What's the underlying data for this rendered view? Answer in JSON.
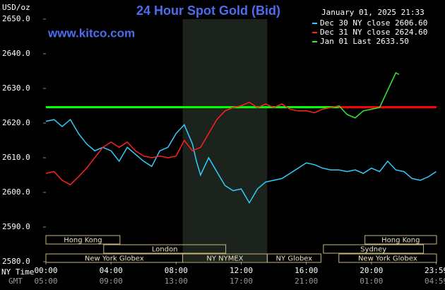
{
  "chart_data": {
    "type": "line",
    "title": "24 Hour Spot Gold (Bid)",
    "site": "www.kitco.com",
    "timestamp": "January 01, 2025 21:33",
    "y_label": "USD/oz",
    "x_row_label": "NY Time",
    "x2_row_label": "GMT",
    "xlim": [
      0,
      24
    ],
    "ylim": [
      2580,
      2650
    ],
    "grid": false,
    "yticks": [
      {
        "value": 2650,
        "label": "2650.0"
      },
      {
        "value": 2640,
        "label": "2640.0"
      },
      {
        "value": 2630,
        "label": "2630.0"
      },
      {
        "value": 2620,
        "label": "2620.0"
      },
      {
        "value": 2610,
        "label": "2610.0"
      },
      {
        "value": 2600,
        "label": "2600.0"
      },
      {
        "value": 2590,
        "label": "2590.0"
      },
      {
        "value": 2580,
        "label": "2580.0"
      }
    ],
    "xticks": [
      {
        "value": 0,
        "label": "00:00"
      },
      {
        "value": 4,
        "label": "04:00"
      },
      {
        "value": 8,
        "label": "08:00"
      },
      {
        "value": 12,
        "label": "12:00"
      },
      {
        "value": 16,
        "label": "16:00"
      },
      {
        "value": 20,
        "label": "20:00"
      },
      {
        "value": 23.98,
        "label": "23:59"
      }
    ],
    "x2ticks": [
      {
        "value": 0,
        "label": "05:00"
      },
      {
        "value": 4,
        "label": "09:00"
      },
      {
        "value": 8,
        "label": "13:00"
      },
      {
        "value": 12,
        "label": "17:00"
      },
      {
        "value": 16,
        "label": "21:00"
      },
      {
        "value": 20,
        "label": "01:00"
      },
      {
        "value": 23.98,
        "label": "04:59"
      }
    ],
    "shaded_span": [
      8.4,
      13.6
    ],
    "reference_line": {
      "value": 2624.6,
      "split_x": 18,
      "color_before": "#00ff00",
      "color_after": "#ff0000"
    },
    "sessions": [
      {
        "label": "Hong Kong",
        "row": 0,
        "start": 0,
        "end": 4.55
      },
      {
        "label": "Hong Kong",
        "row": 0,
        "start": 19.6,
        "end": 24
      },
      {
        "label": "London",
        "row": 1,
        "start": 3.55,
        "end": 11.05
      },
      {
        "label": "Sydney",
        "row": 1,
        "start": 17.05,
        "end": 23.2
      },
      {
        "label": "New York Globex",
        "row": 2,
        "start": 0,
        "end": 8.4
      },
      {
        "label": "NY NYMEX",
        "row": 2,
        "start": 8.4,
        "end": 13.6
      },
      {
        "label": "NY Globex",
        "row": 2,
        "start": 13.6,
        "end": 16.9
      },
      {
        "label": "New York Globex",
        "row": 2,
        "start": 18,
        "end": 24
      }
    ],
    "legend_position": "upper right",
    "series": [
      {
        "name": "Dec 30 NY close 2606.60",
        "color": "#33ccff",
        "x": [
          0,
          0.5,
          1,
          1.5,
          2,
          2.5,
          3,
          3.5,
          4,
          4.5,
          5,
          5.5,
          6,
          6.5,
          7,
          7.5,
          8,
          8.5,
          9,
          9.25,
          9.5,
          10,
          10.5,
          11,
          11.5,
          12,
          12.5,
          13,
          13.5,
          14,
          14.5,
          15,
          15.5,
          16,
          16.5,
          17,
          17.5,
          18,
          18.5,
          19,
          19.5,
          20,
          20.5,
          21,
          21.5,
          22,
          22.5,
          23,
          23.5,
          23.98
        ],
        "values": [
          2620.5,
          2621,
          2619,
          2621,
          2617,
          2614,
          2612,
          2613,
          2612,
          2609,
          2613,
          2611,
          2609,
          2607.5,
          2612,
          2613,
          2617,
          2619.5,
          2614,
          2609,
          2605,
          2610,
          2606,
          2602,
          2600.5,
          2601,
          2597,
          2601,
          2603,
          2603.5,
          2604,
          2605.5,
          2607,
          2608.5,
          2608,
          2607,
          2606.5,
          2606.5,
          2606,
          2606.5,
          2605.5,
          2607,
          2606,
          2609,
          2606.5,
          2606,
          2604,
          2603.5,
          2604.5,
          2606
        ]
      },
      {
        "name": "Dec 31 NY close 2624.60",
        "color": "#ff2020",
        "x": [
          0,
          0.5,
          1,
          1.5,
          2,
          2.5,
          3,
          3.5,
          4,
          4.5,
          5,
          5.5,
          6,
          6.5,
          7,
          7.5,
          8,
          8.5,
          9,
          9.5,
          10,
          10.5,
          11,
          11.5,
          12,
          12.5,
          13,
          13.5,
          14,
          14.5,
          15,
          15.5,
          16,
          16.5,
          17,
          17.5,
          18
        ],
        "values": [
          2605.5,
          2606,
          2603.5,
          2602.2,
          2604.5,
          2607,
          2610,
          2613,
          2614.5,
          2613,
          2614.5,
          2612,
          2610.5,
          2610,
          2610.5,
          2610,
          2610.5,
          2615,
          2612,
          2613,
          2617,
          2621,
          2623.5,
          2624.5,
          2625,
          2626,
          2624.5,
          2625.5,
          2624.5,
          2625.5,
          2624,
          2623.5,
          2623.5,
          2623,
          2624,
          2624.5,
          2625
        ]
      },
      {
        "name": "Jan 01 Last 2633.50",
        "color": "#33ee33",
        "x": [
          18,
          18.5,
          19,
          19.5,
          20,
          20.5,
          21,
          21.5,
          21.7
        ],
        "values": [
          2625,
          2622.5,
          2621.5,
          2623.5,
          2624,
          2624.5,
          2629.5,
          2634.5,
          2634
        ]
      }
    ]
  }
}
